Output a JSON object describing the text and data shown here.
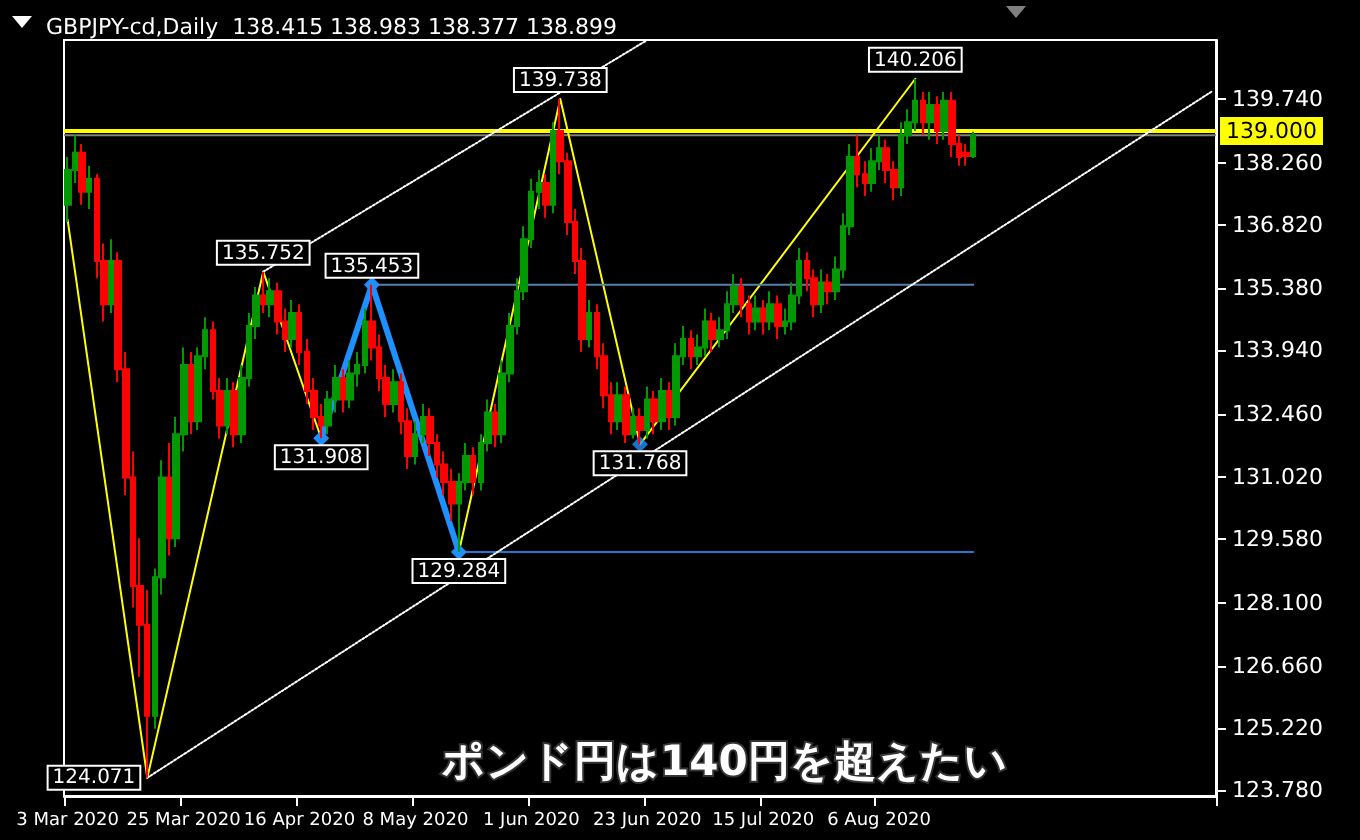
{
  "chart_data": {
    "type": "candlestick",
    "title": "GBPJPY-cd,Daily  138.415 138.983 138.377 138.899",
    "annotations": [
      "ポンド円は140円を超えたい"
    ],
    "categories": [
      "3 Mar 2020",
      null,
      null,
      null,
      null,
      null,
      null,
      null,
      null,
      null,
      null,
      null,
      null,
      null,
      null,
      null,
      "25 Mar 2020",
      null,
      null,
      null,
      null,
      null,
      null,
      null,
      null,
      null,
      null,
      null,
      null,
      null,
      null,
      null,
      "16 Apr 2020",
      null,
      null,
      null,
      null,
      null,
      null,
      null,
      null,
      null,
      null,
      null,
      null,
      null,
      null,
      null,
      "8 May 2020",
      null,
      null,
      null,
      null,
      null,
      null,
      null,
      null,
      null,
      null,
      null,
      null,
      null,
      null,
      null,
      "1 Jun 2020",
      null,
      null,
      null,
      null,
      null,
      null,
      null,
      null,
      null,
      null,
      null,
      null,
      null,
      null,
      null,
      "23 Jun 2020",
      null,
      null,
      null,
      null,
      null,
      null,
      null,
      null,
      null,
      null,
      null,
      null,
      null,
      null,
      null,
      "15 Jul 2020",
      null,
      null,
      null,
      null,
      null,
      null,
      null,
      null,
      null,
      null,
      null,
      null,
      null,
      null,
      null,
      "6 Aug 2020",
      null,
      null,
      null,
      null,
      null,
      null,
      null,
      null,
      null,
      null,
      null,
      null,
      null,
      null,
      null,
      null,
      null,
      null,
      null,
      null,
      null,
      null,
      null,
      null,
      null,
      null,
      null,
      null,
      null,
      null,
      null,
      null,
      null,
      null,
      null,
      null,
      null,
      null,
      null,
      null,
      null,
      null,
      null,
      null,
      null,
      null
    ],
    "ohlc": [
      [
        137.3,
        138.4,
        136.9,
        138.1
      ],
      [
        138.1,
        138.9,
        137.8,
        138.5
      ],
      [
        138.5,
        138.7,
        137.3,
        137.6
      ],
      [
        137.6,
        138.2,
        137.2,
        137.9
      ],
      [
        137.9,
        138.0,
        135.6,
        136.0
      ],
      [
        136.0,
        136.4,
        134.6,
        135.0
      ],
      [
        135.0,
        136.5,
        134.8,
        136.0
      ],
      [
        136.0,
        136.2,
        133.2,
        133.5
      ],
      [
        133.5,
        133.9,
        130.6,
        131.0
      ],
      [
        131.0,
        131.6,
        128.0,
        128.5
      ],
      [
        128.5,
        129.6,
        126.4,
        127.6
      ],
      [
        127.6,
        128.4,
        124.071,
        125.5
      ],
      [
        125.5,
        128.9,
        125.2,
        128.7
      ],
      [
        128.7,
        131.4,
        128.3,
        131.0
      ],
      [
        131.0,
        131.8,
        129.2,
        129.6
      ],
      [
        129.6,
        132.4,
        129.4,
        132.0
      ],
      [
        132.0,
        134.0,
        131.6,
        133.6
      ],
      [
        133.6,
        133.9,
        132.0,
        132.3
      ],
      [
        132.3,
        134.0,
        132.1,
        133.8
      ],
      [
        133.8,
        134.7,
        133.5,
        134.4
      ],
      [
        134.4,
        134.6,
        132.8,
        133.0
      ],
      [
        133.0,
        133.3,
        131.9,
        132.2
      ],
      [
        132.2,
        133.3,
        132.0,
        133.0
      ],
      [
        133.0,
        133.2,
        131.7,
        132.0
      ],
      [
        132.0,
        133.6,
        131.8,
        133.3
      ],
      [
        133.3,
        134.8,
        133.1,
        134.5
      ],
      [
        134.5,
        135.4,
        134.2,
        135.2
      ],
      [
        135.2,
        135.752,
        134.8,
        135.0
      ],
      [
        135.0,
        135.6,
        134.7,
        135.3
      ],
      [
        135.3,
        135.5,
        134.3,
        134.6
      ],
      [
        134.6,
        134.9,
        133.9,
        134.2
      ],
      [
        134.2,
        135.1,
        134.0,
        134.8
      ],
      [
        134.8,
        135.0,
        133.6,
        133.9
      ],
      [
        133.9,
        134.2,
        132.7,
        133.0
      ],
      [
        133.0,
        133.3,
        132.1,
        132.4
      ],
      [
        132.4,
        132.7,
        131.908,
        132.2
      ],
      [
        132.2,
        133.0,
        132.0,
        132.8
      ],
      [
        132.8,
        133.6,
        132.5,
        133.3
      ],
      [
        133.3,
        133.5,
        132.5,
        132.8
      ],
      [
        132.8,
        133.7,
        132.6,
        133.4
      ],
      [
        133.4,
        133.9,
        133.1,
        133.6
      ],
      [
        133.6,
        134.9,
        133.4,
        134.6
      ],
      [
        134.6,
        135.453,
        133.7,
        134.0
      ],
      [
        134.0,
        134.3,
        133.0,
        133.3
      ],
      [
        133.3,
        133.6,
        132.4,
        132.7
      ],
      [
        132.7,
        133.5,
        132.5,
        133.2
      ],
      [
        133.2,
        133.4,
        132.0,
        132.3
      ],
      [
        132.3,
        132.6,
        131.2,
        131.5
      ],
      [
        131.5,
        132.3,
        131.3,
        132.0
      ],
      [
        132.0,
        132.7,
        131.8,
        132.4
      ],
      [
        132.4,
        132.6,
        131.5,
        131.8
      ],
      [
        131.8,
        132.0,
        131.0,
        131.3
      ],
      [
        131.3,
        131.6,
        130.6,
        130.9
      ],
      [
        130.9,
        131.2,
        130.0,
        130.4
      ],
      [
        130.4,
        131.1,
        129.284,
        130.9
      ],
      [
        130.9,
        131.8,
        130.7,
        131.5
      ],
      [
        131.5,
        131.7,
        130.6,
        130.9
      ],
      [
        130.9,
        132.0,
        130.7,
        131.8
      ],
      [
        131.8,
        132.8,
        131.6,
        132.5
      ],
      [
        132.5,
        132.7,
        131.7,
        132.0
      ],
      [
        132.0,
        133.7,
        131.8,
        133.4
      ],
      [
        133.4,
        134.8,
        133.2,
        134.5
      ],
      [
        134.5,
        135.6,
        134.3,
        135.3
      ],
      [
        135.3,
        136.8,
        135.1,
        136.5
      ],
      [
        136.5,
        137.9,
        136.3,
        137.6
      ],
      [
        137.6,
        138.1,
        137.2,
        137.8
      ],
      [
        137.8,
        138.0,
        137.0,
        137.3
      ],
      [
        137.3,
        139.2,
        137.1,
        139.0
      ],
      [
        139.0,
        139.738,
        138.0,
        138.3
      ],
      [
        138.3,
        138.5,
        136.6,
        136.9
      ],
      [
        136.9,
        137.2,
        135.7,
        136.0
      ],
      [
        136.0,
        136.3,
        133.9,
        134.2
      ],
      [
        134.2,
        135.1,
        134.0,
        134.8
      ],
      [
        134.8,
        135.0,
        133.5,
        133.8
      ],
      [
        133.8,
        134.1,
        132.6,
        132.9
      ],
      [
        132.9,
        133.2,
        132.0,
        132.3
      ],
      [
        132.3,
        133.2,
        132.1,
        132.9
      ],
      [
        132.9,
        133.1,
        131.8,
        132.0
      ],
      [
        132.0,
        132.6,
        131.9,
        132.4
      ],
      [
        132.4,
        132.6,
        131.768,
        132.1
      ],
      [
        132.1,
        133.1,
        131.9,
        132.8
      ],
      [
        132.8,
        133.0,
        132.0,
        132.3
      ],
      [
        132.3,
        133.3,
        132.1,
        133.0
      ],
      [
        133.0,
        133.2,
        132.1,
        132.4
      ],
      [
        132.4,
        134.1,
        132.2,
        133.8
      ],
      [
        133.8,
        134.5,
        133.6,
        134.2
      ],
      [
        134.2,
        134.4,
        133.5,
        133.8
      ],
      [
        133.8,
        134.3,
        133.6,
        134.0
      ],
      [
        134.0,
        134.9,
        133.8,
        134.6
      ],
      [
        134.6,
        134.8,
        133.9,
        134.2
      ],
      [
        134.2,
        134.7,
        134.0,
        134.4
      ],
      [
        134.4,
        135.3,
        134.2,
        135.0
      ],
      [
        135.0,
        135.7,
        134.8,
        135.4
      ],
      [
        135.4,
        135.6,
        134.7,
        135.0
      ],
      [
        135.0,
        135.2,
        134.3,
        134.6
      ],
      [
        134.6,
        135.2,
        134.4,
        134.9
      ],
      [
        134.9,
        135.1,
        134.3,
        134.6
      ],
      [
        134.6,
        135.3,
        134.4,
        135.0
      ],
      [
        135.0,
        135.2,
        134.2,
        134.5
      ],
      [
        134.5,
        134.9,
        134.3,
        134.6
      ],
      [
        134.6,
        135.5,
        134.4,
        135.2
      ],
      [
        135.2,
        136.3,
        135.0,
        136.0
      ],
      [
        136.0,
        136.2,
        135.3,
        135.6
      ],
      [
        135.6,
        135.8,
        134.7,
        135.0
      ],
      [
        135.0,
        135.8,
        134.8,
        135.5
      ],
      [
        135.5,
        135.7,
        135.0,
        135.3
      ],
      [
        135.3,
        136.1,
        135.1,
        135.8
      ],
      [
        135.8,
        137.1,
        135.6,
        136.8
      ],
      [
        136.8,
        138.7,
        136.6,
        138.4
      ],
      [
        138.4,
        138.9,
        137.7,
        138.0
      ],
      [
        138.0,
        138.3,
        137.5,
        137.8
      ],
      [
        137.8,
        138.6,
        137.6,
        138.3
      ],
      [
        138.3,
        138.9,
        138.1,
        138.6
      ],
      [
        138.6,
        138.8,
        137.8,
        138.1
      ],
      [
        138.1,
        138.3,
        137.4,
        137.7
      ],
      [
        137.7,
        139.2,
        137.5,
        138.9
      ],
      [
        138.9,
        139.5,
        138.7,
        139.2
      ],
      [
        139.2,
        140.206,
        139.0,
        139.7
      ],
      [
        139.7,
        139.9,
        138.9,
        139.2
      ],
      [
        139.2,
        139.9,
        138.8,
        139.6
      ],
      [
        139.6,
        139.8,
        138.7,
        139.0
      ],
      [
        139.0,
        139.9,
        138.8,
        139.7
      ],
      [
        139.7,
        139.9,
        138.4,
        138.7
      ],
      [
        138.7,
        138.9,
        138.2,
        138.4
      ],
      [
        138.5,
        138.7,
        138.2,
        138.42
      ],
      [
        138.415,
        138.983,
        138.377,
        138.899
      ],
      null,
      null,
      null,
      null,
      null,
      null,
      null,
      null,
      null,
      null,
      null,
      null,
      null,
      null,
      null,
      null,
      null,
      null,
      null,
      null,
      null,
      null,
      null,
      null,
      null,
      null,
      null,
      null,
      null,
      null,
      null,
      null,
      null
    ],
    "colors": [
      "#009900",
      "#009900",
      "#ff0000",
      "#009900",
      "#ff0000",
      "#ff0000",
      "#009900",
      "#ff0000",
      "#ff0000",
      "#ff0000",
      "#ff0000",
      "#ff0000",
      "#009900",
      "#009900",
      "#ff0000",
      "#009900",
      "#009900",
      "#ff0000",
      "#009900",
      "#009900",
      "#ff0000",
      "#ff0000",
      "#009900",
      "#ff0000",
      "#009900",
      "#009900",
      "#009900",
      "#ff0000",
      "#009900",
      "#ff0000",
      "#ff0000",
      "#009900",
      "#ff0000",
      "#ff0000",
      "#ff0000",
      "#ff0000",
      "#009900",
      "#009900",
      "#ff0000",
      "#009900",
      "#009900",
      "#009900",
      "#ff0000",
      "#ff0000",
      "#ff0000",
      "#009900",
      "#ff0000",
      "#ff0000",
      "#009900",
      "#009900",
      "#ff0000",
      "#ff0000",
      "#ff0000",
      "#ff0000",
      "#009900",
      "#009900",
      "#ff0000",
      "#009900",
      "#009900",
      "#ff0000",
      "#009900",
      "#009900",
      "#009900",
      "#009900",
      "#009900",
      "#009900",
      "#ff0000",
      "#009900",
      "#ff0000",
      "#ff0000",
      "#ff0000",
      "#ff0000",
      "#009900",
      "#ff0000",
      "#ff0000",
      "#ff0000",
      "#009900",
      "#ff0000",
      "#009900",
      "#ff0000",
      "#009900",
      "#ff0000",
      "#009900",
      "#ff0000",
      "#009900",
      "#009900",
      "#ff0000",
      "#009900",
      "#009900",
      "#ff0000",
      "#009900",
      "#009900",
      "#009900",
      "#ff0000",
      "#ff0000",
      "#009900",
      "#ff0000",
      "#009900",
      "#ff0000",
      "#009900",
      "#009900",
      "#009900",
      "#ff0000",
      "#ff0000",
      "#009900",
      "#ff0000",
      "#009900",
      "#009900",
      "#009900",
      "#ff0000",
      "#ff0000",
      "#009900",
      "#009900",
      "#ff0000",
      "#ff0000",
      "#009900",
      "#009900",
      "#009900",
      "#ff0000",
      "#009900",
      "#ff0000",
      "#009900",
      "#ff0000",
      "#ff0000",
      "#ff0000",
      "#009900",
      null,
      null,
      null,
      null,
      null,
      null,
      null,
      null,
      null,
      null,
      null,
      null,
      null,
      null,
      null,
      null,
      null,
      null,
      null,
      null,
      null,
      null,
      null,
      null,
      null,
      null,
      null,
      null,
      null,
      null,
      null,
      null,
      null
    ],
    "ylim": [
      123.65,
      141.1
    ],
    "yticks": [
      {
        "value": 139.74,
        "label": "139.740"
      },
      {
        "value": 138.26,
        "label": "138.260"
      },
      {
        "value": 136.82,
        "label": "136.820"
      },
      {
        "value": 135.38,
        "label": "135.380"
      },
      {
        "value": 133.94,
        "label": "133.940"
      },
      {
        "value": 132.46,
        "label": "132.460"
      },
      {
        "value": 131.02,
        "label": "131.020"
      },
      {
        "value": 129.58,
        "label": "129.580"
      },
      {
        "value": 128.1,
        "label": "128.100"
      },
      {
        "value": 126.66,
        "label": "126.660"
      },
      {
        "value": 125.22,
        "label": "125.220"
      },
      {
        "value": 123.78,
        "label": "123.780"
      }
    ],
    "ref_lines": [
      {
        "axis": "y",
        "value": 138.899,
        "color": "#808080"
      },
      {
        "axis": "y",
        "value": 139.0,
        "label": "139.000",
        "color": "#ffff00"
      }
    ],
    "series": [
      {
        "type": "line",
        "color": "#ffff00",
        "marker": "none",
        "values": [
          136.95,
          null,
          null,
          null,
          null,
          null,
          null,
          null,
          null,
          null,
          null,
          124.071,
          null,
          null,
          null,
          null,
          null,
          null,
          null,
          null,
          null,
          null,
          null,
          null,
          null,
          null,
          null,
          135.752,
          null,
          null,
          null,
          null,
          null,
          null,
          null,
          131.908,
          null,
          null,
          null,
          null,
          null,
          null,
          135.453,
          null,
          null,
          null,
          null,
          null,
          null,
          null,
          null,
          null,
          null,
          null,
          129.284,
          null,
          null,
          null,
          null,
          null,
          null,
          null,
          null,
          null,
          null,
          null,
          null,
          null,
          139.738,
          null,
          null,
          null,
          null,
          null,
          null,
          null,
          null,
          null,
          null,
          131.768,
          null,
          null,
          null,
          null,
          null,
          null,
          null,
          null,
          null,
          null,
          null,
          null,
          null,
          null,
          null,
          null,
          null,
          null,
          null,
          null,
          null,
          null,
          null,
          null,
          null,
          null,
          null,
          null,
          null,
          null,
          null,
          null,
          null,
          null,
          null,
          null,
          null,
          140.206,
          null,
          null,
          null,
          null,
          null,
          null,
          null,
          null,
          null,
          null,
          null,
          null,
          null,
          null,
          null,
          null,
          null,
          null,
          null,
          null,
          null,
          null,
          null,
          null,
          null,
          null,
          null,
          null,
          null,
          null,
          null,
          null,
          null,
          null,
          null,
          null,
          null,
          null,
          null,
          null,
          null
        ],
        "value_labels": [
          null,
          null,
          null,
          null,
          null,
          null,
          null,
          null,
          null,
          null,
          null,
          "124.071",
          null,
          null,
          null,
          null,
          null,
          null,
          null,
          null,
          null,
          null,
          null,
          null,
          null,
          null,
          null,
          "135.752",
          null,
          null,
          null,
          null,
          null,
          null,
          null,
          null,
          null,
          null,
          null,
          null,
          null,
          null,
          null,
          null,
          null,
          null,
          null,
          null,
          null,
          null,
          null,
          null,
          null,
          null,
          null,
          null,
          null,
          null,
          null,
          null,
          null,
          null,
          null,
          null,
          null,
          null,
          null,
          null,
          "139.738",
          null,
          null,
          null,
          null,
          null,
          null,
          null,
          null,
          null,
          null,
          "131.768",
          null,
          null,
          null,
          null,
          null,
          null,
          null,
          null,
          null,
          null,
          null,
          null,
          null,
          null,
          null,
          null,
          null,
          null,
          null,
          null,
          null,
          null,
          null,
          null,
          null,
          null,
          null,
          null,
          null,
          null,
          null,
          null,
          null,
          null,
          null,
          null,
          null,
          "140.206",
          null,
          null,
          null,
          null,
          null,
          null,
          null,
          null,
          null,
          null,
          null,
          null,
          null,
          null,
          null,
          null,
          null,
          null,
          null,
          null,
          null,
          null,
          null,
          null,
          null,
          null,
          null,
          null,
          null,
          null,
          null,
          null,
          null,
          null,
          null,
          null,
          null,
          null,
          null,
          null,
          null
        ]
      },
      {
        "type": "line",
        "color": "#1e90ff",
        "marker": "diamond",
        "values": [
          null,
          null,
          null,
          null,
          null,
          null,
          null,
          null,
          null,
          null,
          null,
          null,
          null,
          null,
          null,
          null,
          null,
          null,
          null,
          null,
          null,
          null,
          null,
          null,
          null,
          null,
          null,
          null,
          null,
          null,
          null,
          null,
          null,
          null,
          null,
          131.908,
          null,
          null,
          null,
          null,
          null,
          null,
          135.453,
          null,
          null,
          null,
          null,
          null,
          null,
          null,
          null,
          null,
          null,
          null,
          129.284,
          null,
          null,
          null,
          null,
          null,
          null,
          null,
          null,
          null,
          null,
          null,
          null,
          null,
          null,
          null,
          null,
          null,
          null,
          null,
          null,
          null,
          null,
          null,
          null,
          null,
          null,
          null,
          null,
          null,
          null,
          null,
          null,
          null,
          null,
          null,
          null,
          null,
          null,
          null,
          null,
          null,
          null,
          null,
          null,
          null,
          null,
          null,
          null,
          null,
          null,
          null,
          null,
          null,
          null,
          null,
          null,
          null,
          null,
          null,
          null,
          null,
          null,
          null,
          null,
          null,
          null,
          null,
          null,
          null,
          null,
          null,
          null,
          null,
          null,
          null,
          null,
          null,
          null,
          null,
          null,
          null,
          null,
          null,
          null,
          null,
          null,
          null,
          null,
          null,
          null,
          null,
          null,
          null,
          null,
          null,
          null,
          null,
          null,
          null,
          null,
          null,
          null,
          null,
          null
        ],
        "value_labels": [
          null,
          null,
          null,
          null,
          null,
          null,
          null,
          null,
          null,
          null,
          null,
          null,
          null,
          null,
          null,
          null,
          null,
          null,
          null,
          null,
          null,
          null,
          null,
          null,
          null,
          null,
          null,
          null,
          null,
          null,
          null,
          null,
          null,
          null,
          null,
          "131.908",
          null,
          null,
          null,
          null,
          null,
          null,
          "135.453",
          null,
          null,
          null,
          null,
          null,
          null,
          null,
          null,
          null,
          null,
          null,
          "129.284",
          null,
          null,
          null,
          null,
          null,
          null,
          null,
          null,
          null,
          null,
          null,
          null,
          null,
          null,
          null,
          null,
          null,
          null,
          null,
          null,
          null,
          null,
          null,
          null,
          null,
          null,
          null,
          null,
          null,
          null,
          null,
          null,
          null,
          null,
          null,
          null,
          null,
          null,
          null,
          null,
          null,
          null,
          null,
          null,
          null,
          null,
          null,
          null,
          null,
          null,
          null,
          null,
          null,
          null,
          null,
          null,
          null,
          null,
          null,
          null,
          null,
          null,
          null,
          null,
          null,
          null,
          null,
          null,
          null,
          null,
          null,
          null,
          null,
          null,
          null,
          null,
          null,
          null,
          null,
          null,
          null,
          null,
          null,
          null,
          null,
          null,
          null,
          null,
          null,
          null,
          null,
          null,
          null,
          null,
          null,
          null,
          null,
          null,
          null,
          null,
          null,
          null,
          null,
          null
        ]
      },
      {
        "type": "scatter",
        "color": "#1e90ff",
        "marker": "diamond",
        "values": [
          null,
          null,
          null,
          null,
          null,
          null,
          null,
          null,
          null,
          null,
          null,
          null,
          null,
          null,
          null,
          null,
          null,
          null,
          null,
          null,
          null,
          null,
          null,
          null,
          null,
          null,
          null,
          null,
          null,
          null,
          null,
          null,
          null,
          null,
          null,
          null,
          null,
          null,
          null,
          null,
          null,
          null,
          null,
          null,
          null,
          null,
          null,
          null,
          null,
          null,
          null,
          null,
          null,
          null,
          null,
          null,
          null,
          null,
          null,
          null,
          null,
          null,
          null,
          null,
          null,
          null,
          null,
          null,
          null,
          null,
          null,
          null,
          null,
          null,
          null,
          null,
          null,
          null,
          null,
          131.768,
          null,
          null,
          null,
          null,
          null,
          null,
          null,
          null,
          null,
          null,
          null,
          null,
          null,
          null,
          null,
          null,
          null,
          null,
          null,
          null,
          null,
          null,
          null,
          null,
          null,
          null,
          null,
          null,
          null,
          null,
          null,
          null,
          null,
          null,
          null,
          null,
          null,
          null,
          null,
          null,
          null,
          null,
          null,
          null,
          null,
          null,
          null,
          null,
          null,
          null,
          null,
          null,
          null,
          null,
          null,
          null,
          null,
          null,
          null,
          null,
          null,
          null,
          null,
          null,
          null,
          null,
          null,
          null,
          null,
          null,
          null,
          null,
          null,
          null,
          null,
          null,
          null,
          null,
          null
        ]
      },
      {
        "type": "line",
        "color": "#1e78d7",
        "marker": "none",
        "values": [
          null,
          null,
          null,
          null,
          null,
          null,
          null,
          null,
          null,
          null,
          null,
          null,
          null,
          null,
          null,
          null,
          null,
          null,
          null,
          null,
          null,
          null,
          null,
          null,
          null,
          null,
          null,
          null,
          null,
          null,
          null,
          null,
          null,
          null,
          null,
          null,
          null,
          null,
          null,
          null,
          null,
          null,
          null,
          null,
          null,
          null,
          null,
          null,
          null,
          null,
          null,
          null,
          null,
          null,
          129.284,
          null,
          null,
          null,
          null,
          null,
          null,
          null,
          null,
          null,
          null,
          null,
          null,
          null,
          null,
          null,
          null,
          null,
          null,
          null,
          null,
          null,
          null,
          null,
          null,
          null,
          null,
          null,
          null,
          null,
          null,
          null,
          null,
          null,
          null,
          null,
          null,
          null,
          null,
          null,
          null,
          null,
          null,
          null,
          null,
          null,
          null,
          null,
          null,
          null,
          null,
          null,
          null,
          null,
          null,
          null,
          null,
          null,
          null,
          null,
          null,
          null,
          null,
          null,
          null,
          null,
          null,
          null,
          null,
          null,
          null,
          129.284,
          null,
          null,
          null,
          null,
          null,
          null,
          null,
          null,
          null,
          null,
          null,
          null,
          null,
          null,
          null,
          null,
          null,
          null,
          null,
          null,
          null,
          null,
          null,
          null,
          null,
          null,
          null,
          null,
          null,
          null,
          null,
          null,
          null
        ]
      },
      {
        "type": "line",
        "color": "#5a7fa8",
        "marker": "none",
        "values": [
          null,
          null,
          null,
          null,
          null,
          null,
          null,
          null,
          null,
          null,
          null,
          null,
          null,
          null,
          null,
          null,
          null,
          null,
          null,
          null,
          null,
          null,
          null,
          null,
          null,
          null,
          null,
          null,
          null,
          null,
          null,
          null,
          null,
          null,
          null,
          null,
          null,
          null,
          null,
          null,
          null,
          null,
          135.453,
          null,
          null,
          null,
          null,
          null,
          null,
          null,
          null,
          null,
          null,
          null,
          null,
          null,
          null,
          null,
          null,
          null,
          null,
          null,
          null,
          null,
          null,
          null,
          null,
          null,
          null,
          null,
          null,
          null,
          null,
          null,
          null,
          null,
          null,
          null,
          null,
          null,
          null,
          null,
          null,
          null,
          null,
          null,
          null,
          null,
          null,
          null,
          null,
          null,
          null,
          null,
          null,
          null,
          null,
          null,
          null,
          null,
          null,
          null,
          null,
          null,
          null,
          null,
          null,
          null,
          null,
          null,
          null,
          null,
          null,
          null,
          null,
          null,
          null,
          null,
          null,
          null,
          null,
          null,
          null,
          null,
          null,
          135.453,
          null,
          null,
          null,
          null,
          null,
          null,
          null,
          null,
          null,
          null,
          null,
          null,
          null,
          null,
          null,
          null,
          null,
          null,
          null,
          null,
          null,
          null,
          null,
          null,
          null,
          null,
          null,
          null,
          null,
          null,
          null,
          null,
          null
        ]
      },
      {
        "type": "line",
        "color": "#ffffff",
        "marker": "none",
        "line_style": "dotted",
        "values": [
          null,
          null,
          null,
          null,
          null,
          null,
          null,
          null,
          null,
          null,
          null,
          124.071,
          null,
          null,
          null,
          null,
          null,
          null,
          null,
          null,
          null,
          null,
          null,
          null,
          null,
          null,
          null,
          null,
          null,
          null,
          null,
          null,
          null,
          null,
          null,
          null,
          null,
          null,
          null,
          null,
          null,
          null,
          null,
          null,
          null,
          null,
          null,
          null,
          null,
          null,
          null,
          null,
          null,
          null,
          null,
          null,
          null,
          null,
          null,
          null,
          null,
          null,
          null,
          null,
          null,
          null,
          null,
          null,
          null,
          null,
          null,
          null,
          null,
          null,
          null,
          null,
          null,
          null,
          null,
          null,
          null,
          null,
          null,
          null,
          null,
          null,
          null,
          null,
          null,
          null,
          null,
          null,
          null,
          null,
          null,
          null,
          null,
          null,
          null,
          null,
          null,
          null,
          null,
          null,
          null,
          null,
          null,
          null,
          null,
          null,
          null,
          null,
          null,
          null,
          null,
          null,
          null,
          null,
          null,
          null,
          null,
          null,
          null,
          null,
          null,
          null,
          null,
          null,
          null,
          null,
          null,
          null,
          null,
          null,
          null,
          null,
          null,
          null,
          null,
          null,
          null,
          null,
          null,
          null,
          null,
          null,
          null,
          null,
          null,
          null,
          null,
          null,
          null,
          null,
          null,
          null,
          null,
          null,
          139.92
        ]
      },
      {
        "type": "line",
        "color": "#ffffff",
        "marker": "none",
        "line_style": "dotted",
        "values": [
          null,
          null,
          null,
          null,
          null,
          null,
          null,
          null,
          null,
          null,
          null,
          null,
          null,
          null,
          null,
          null,
          null,
          null,
          null,
          null,
          null,
          null,
          null,
          null,
          null,
          null,
          null,
          135.752,
          null,
          null,
          null,
          null,
          null,
          null,
          null,
          null,
          null,
          null,
          null,
          null,
          null,
          null,
          null,
          null,
          null,
          null,
          null,
          null,
          null,
          null,
          null,
          null,
          null,
          null,
          null,
          null,
          null,
          null,
          null,
          null,
          null,
          null,
          null,
          null,
          null,
          null,
          null,
          null,
          null,
          null,
          null,
          null,
          null,
          null,
          null,
          null,
          null,
          null,
          null,
          null,
          141.1,
          null,
          null,
          null,
          null,
          null,
          null,
          null,
          null,
          null,
          null,
          null,
          null,
          null,
          null,
          null,
          null,
          null,
          null,
          null,
          null,
          null,
          null,
          null,
          null,
          null,
          null,
          null,
          null,
          null,
          null,
          null,
          null,
          null,
          null,
          null,
          null,
          null,
          null,
          null,
          null,
          null,
          null,
          null,
          null,
          null,
          null,
          null,
          null,
          null,
          null,
          null,
          null,
          null,
          null,
          null,
          null,
          null,
          null,
          null,
          null,
          null,
          null,
          null,
          null,
          null,
          null,
          null,
          null,
          null,
          null,
          null,
          null,
          null,
          null,
          null,
          null,
          null,
          null
        ]
      }
    ]
  }
}
